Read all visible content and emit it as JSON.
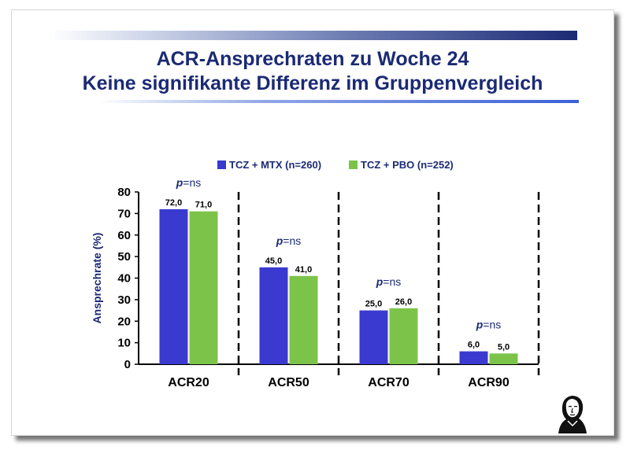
{
  "slide": {
    "title_line1": "ACR-Ansprechraten zu Woche 24",
    "title_line2": "Keine signifikante Differenz im Gruppenvergleich"
  },
  "colors": {
    "title": "#1b2a74",
    "series_mtx": "#3a3ad0",
    "series_pbo": "#7cc34a",
    "axis": "#000000"
  },
  "logo_icon": "goethe-portrait-icon",
  "chart_data": {
    "type": "bar",
    "categories": [
      "ACR20",
      "ACR50",
      "ACR70",
      "ACR90"
    ],
    "series": [
      {
        "name": "TCZ + MTX (n=260)",
        "values": [
          72.0,
          45.0,
          25.0,
          6.0
        ],
        "labels": [
          "72,0",
          "45,0",
          "25,0",
          "6,0"
        ]
      },
      {
        "name": "TCZ + PBO (n=252)",
        "values": [
          71.0,
          41.0,
          26.0,
          5.0
        ],
        "labels": [
          "71,0",
          "41,0",
          "26,0",
          "5,0"
        ]
      }
    ],
    "ylabel": "Ansprechrate (%)",
    "xlabel": "",
    "ylim": [
      0,
      80
    ],
    "yticks": [
      "0",
      "10",
      "20",
      "30",
      "40",
      "50",
      "60",
      "70",
      "80"
    ],
    "annotations": [
      {
        "category": "ACR20",
        "italic": "p",
        "rest": "=ns"
      },
      {
        "category": "ACR50",
        "italic": "p",
        "rest": "=ns"
      },
      {
        "category": "ACR70",
        "italic": "p",
        "rest": "=ns"
      },
      {
        "category": "ACR90",
        "italic": "p",
        "rest": "=ns"
      }
    ],
    "legend_position": "top",
    "category_separators": "dashed",
    "grid": false
  }
}
